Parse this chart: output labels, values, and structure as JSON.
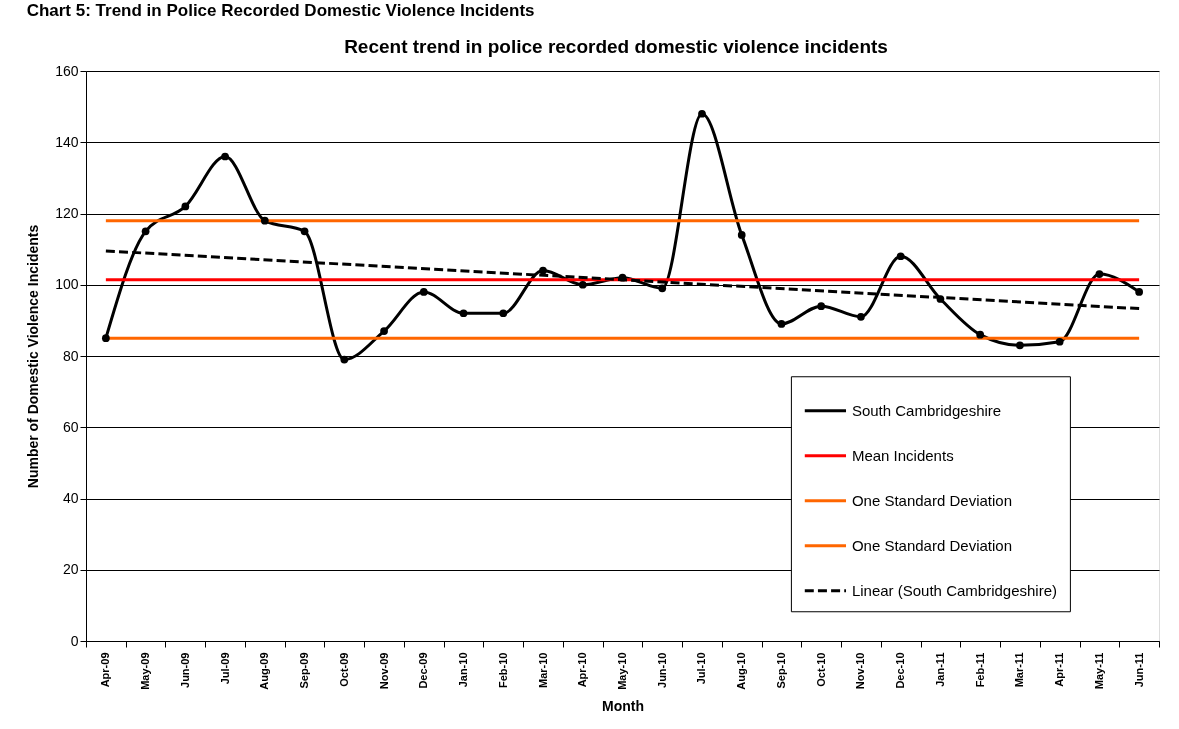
{
  "chart_data": {
    "type": "line",
    "title": "Chart 5: Trend in Police Recorded Domestic Violence Incidents",
    "subtitle": "Recent trend in police recorded domestic violence incidents",
    "xlabel": "Month",
    "ylabel": "Number of Domestic Violence Incidents",
    "categories": [
      "Apr-09",
      "May-09",
      "Jun-09",
      "Jul-09",
      "Aug-09",
      "Sep-09",
      "Oct-09",
      "Nov-09",
      "Dec-09",
      "Jan-10",
      "Feb-10",
      "Mar-10",
      "Apr-10",
      "May-10",
      "Jun-10",
      "Jul-10",
      "Aug-10",
      "Sep-10",
      "Oct-10",
      "Nov-10",
      "Dec-10",
      "Jan-11",
      "Feb-11",
      "Mar-11",
      "Apr-11",
      "May-11",
      "Jun-11"
    ],
    "series": [
      {
        "name": "South Cambridgeshire",
        "color": "#000000",
        "marker": "circle",
        "values": [
          85,
          115,
          122,
          136,
          118,
          115,
          79,
          87,
          98,
          92,
          92,
          104,
          100,
          102,
          99,
          148,
          114,
          89,
          94,
          91,
          108,
          96,
          86,
          83,
          84,
          103,
          98
        ]
      },
      {
        "name": "Mean Incidents",
        "color": "#ff0000",
        "values": [
          101.4,
          101.4,
          101.4,
          101.4,
          101.4,
          101.4,
          101.4,
          101.4,
          101.4,
          101.4,
          101.4,
          101.4,
          101.4,
          101.4,
          101.4,
          101.4,
          101.4,
          101.4,
          101.4,
          101.4,
          101.4,
          101.4,
          101.4,
          101.4,
          101.4,
          101.4,
          101.4
        ]
      },
      {
        "name": "One Standard Deviation",
        "color": "#ff6600",
        "values": [
          118,
          118,
          118,
          118,
          118,
          118,
          118,
          118,
          118,
          118,
          118,
          118,
          118,
          118,
          118,
          118,
          118,
          118,
          118,
          118,
          118,
          118,
          118,
          118,
          118,
          118,
          118
        ]
      },
      {
        "name": "One Standard Deviation",
        "color": "#ff6600",
        "values": [
          85,
          85,
          85,
          85,
          85,
          85,
          85,
          85,
          85,
          85,
          85,
          85,
          85,
          85,
          85,
          85,
          85,
          85,
          85,
          85,
          85,
          85,
          85,
          85,
          85,
          85,
          85
        ]
      },
      {
        "name": "Linear (South Cambridgeshire)",
        "type": "line",
        "color": "#000000",
        "line_style": "dashed",
        "x": [
          "Apr-09",
          "Jun-11"
        ],
        "values": [
          109.5,
          93.3
        ]
      }
    ],
    "ylim": [
      0,
      160
    ],
    "yticks": [
      0,
      20,
      40,
      60,
      80,
      100,
      120,
      140,
      160
    ],
    "grid": "y",
    "legend": "bottom right",
    "line_style": "solid"
  }
}
